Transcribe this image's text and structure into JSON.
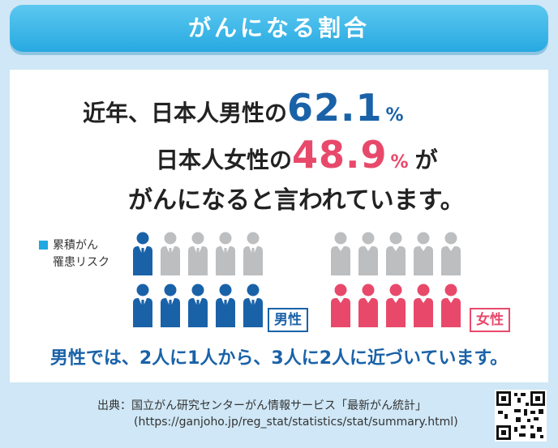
{
  "header": {
    "title": "がんになる割合"
  },
  "headline": {
    "line1_prefix": "近年、日本人男性の",
    "male_rate": "62.1",
    "percent_sign": "%",
    "line2_prefix": "日本人女性の",
    "female_rate": "48.9",
    "line2_suffix": "が",
    "line3": "がんになると言われています。"
  },
  "legend": {
    "label_line1": "累積がん",
    "label_line2": "罹患リスク"
  },
  "pictograms": {
    "male": {
      "label": "男性",
      "filled_top_row": 1,
      "filled_bottom_row": 5,
      "per_row": 5,
      "color": "#1a62a8"
    },
    "female": {
      "label": "女性",
      "filled_top_row": 0,
      "filled_bottom_row": 5,
      "per_row": 5,
      "color": "#e8496b"
    },
    "empty_color": "#bcbec0"
  },
  "summary": "男性では、2人に1人から、3人に2人に近づいています。",
  "source": {
    "line1": "出典：国立がん研究センターがん情報サービス「最新がん統計」",
    "line2": "(https://ganjoho.jp/reg_stat/statistics/stat/summary.html)"
  },
  "colors": {
    "accent": "#27a9e1",
    "male": "#1a62a8",
    "female": "#e8496b",
    "background": "#cfe7f6"
  }
}
